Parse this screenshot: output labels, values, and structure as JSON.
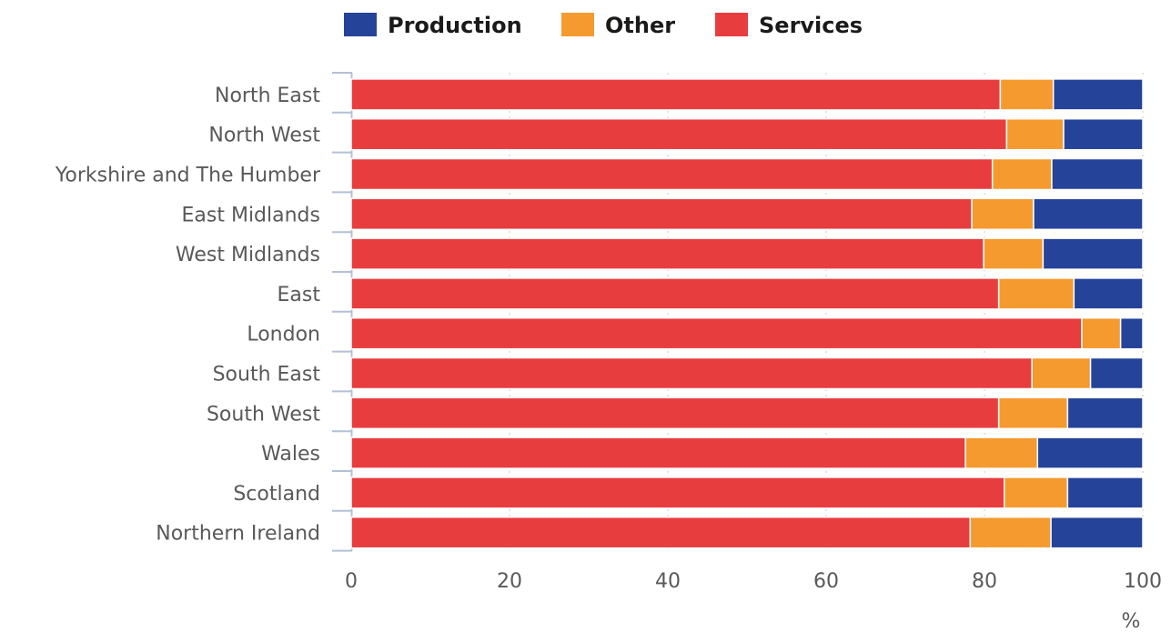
{
  "chart_data": {
    "type": "bar",
    "orientation": "horizontal",
    "stacked": true,
    "categories": [
      "North East",
      "North West",
      "Yorkshire and The Humber",
      "East Midlands",
      "West Midlands",
      "East",
      "London",
      "South East",
      "South West",
      "Wales",
      "Scotland",
      "Northern Ireland"
    ],
    "series": [
      {
        "name": "Services",
        "color": "#e83d3f",
        "values": [
          82.0,
          82.8,
          81.0,
          78.4,
          79.9,
          81.8,
          92.3,
          86.0,
          81.8,
          77.6,
          82.5,
          78.2
        ]
      },
      {
        "name": "Other",
        "color": "#f59a2f",
        "values": [
          6.7,
          7.2,
          7.5,
          7.8,
          7.5,
          9.5,
          4.9,
          7.4,
          8.7,
          9.1,
          8.0,
          10.2
        ]
      },
      {
        "name": "Production",
        "color": "#26439a",
        "values": [
          11.3,
          10.0,
          11.5,
          13.8,
          12.6,
          8.7,
          2.8,
          6.6,
          9.5,
          13.3,
          9.5,
          11.6
        ]
      }
    ],
    "legend_order": [
      "Production",
      "Other",
      "Services"
    ],
    "legend_placement": "top",
    "xlim": [
      0,
      100
    ],
    "xticks": [
      "0",
      "20",
      "40",
      "60",
      "80",
      "100"
    ],
    "xunit": "%",
    "grid": "vertical-dotted"
  }
}
